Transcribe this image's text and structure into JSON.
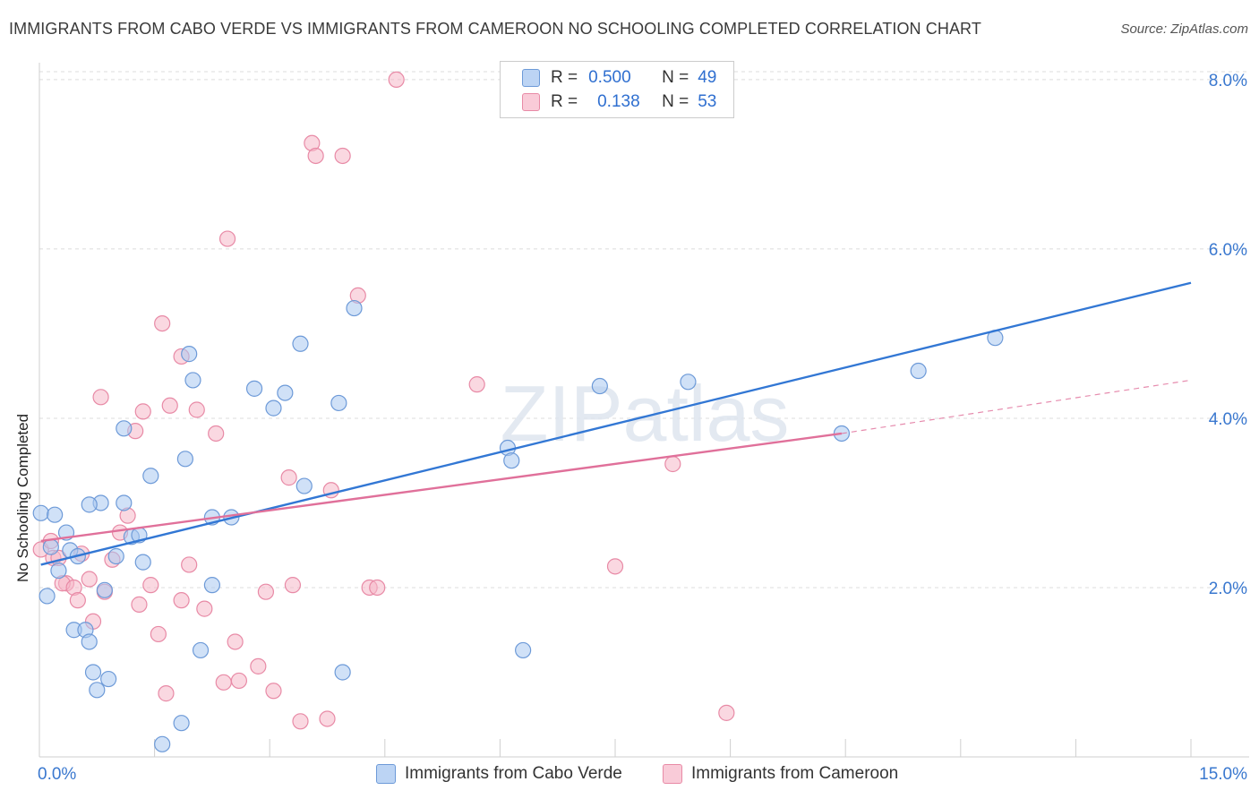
{
  "title": "IMMIGRANTS FROM CABO VERDE VS IMMIGRANTS FROM CAMEROON NO SCHOOLING COMPLETED CORRELATION CHART",
  "source": "Source: ZipAtlas.com",
  "watermark": "ZIPatlas",
  "colors": {
    "blue_fill": "#a9c8f0",
    "blue_stroke": "#6d9ad8",
    "blue_line": "#3277d4",
    "pink_fill": "#f5b8c9",
    "pink_stroke": "#e88aa6",
    "pink_line": "#e0709a",
    "grid": "#dcdcdc",
    "tick_label": "#3a78cf"
  },
  "legend": {
    "rows": [
      {
        "r_label": "R =",
        "r_value": "0.500",
        "n_label": "N =",
        "n_value": "49"
      },
      {
        "r_label": "R =",
        "r_value": "0.138",
        "n_label": "N =",
        "n_value": "53"
      }
    ]
  },
  "bottom_legend": [
    "Immigrants from Cabo Verde",
    "Immigrants from Cameroon"
  ],
  "chart_data": {
    "type": "scatter",
    "title": "IMMIGRANTS FROM CABO VERDE VS IMMIGRANTS FROM CAMEROON NO SCHOOLING COMPLETED CORRELATION CHART",
    "xlabel": "",
    "ylabel": "No Schooling Completed",
    "xlim": [
      0,
      15
    ],
    "ylim": [
      0,
      8.2
    ],
    "x_tick_labels": [
      "0.0%",
      "15.0%"
    ],
    "y_ticks": [
      2,
      4,
      6,
      8
    ],
    "y_tick_labels": [
      "2.0%",
      "4.0%",
      "6.0%",
      "8.0%"
    ],
    "grid": true,
    "series": [
      {
        "name": "Immigrants from Cabo Verde",
        "color": "blue",
        "r": 0.5,
        "n": 49,
        "trend": {
          "x": [
            0.02,
            15.0
          ],
          "y": [
            2.27,
            5.6
          ],
          "dashed_extension": false
        },
        "points": [
          [
            0.02,
            2.88
          ],
          [
            0.2,
            2.86
          ],
          [
            0.15,
            2.48
          ],
          [
            0.35,
            2.65
          ],
          [
            0.4,
            2.44
          ],
          [
            0.5,
            2.37
          ],
          [
            0.25,
            2.2
          ],
          [
            0.1,
            1.9
          ],
          [
            0.45,
            1.5
          ],
          [
            0.6,
            1.5
          ],
          [
            0.65,
            1.36
          ],
          [
            0.7,
            1.0
          ],
          [
            0.75,
            0.79
          ],
          [
            0.9,
            0.92
          ],
          [
            0.85,
            1.97
          ],
          [
            1.0,
            2.37
          ],
          [
            1.2,
            2.6
          ],
          [
            1.3,
            2.62
          ],
          [
            1.35,
            2.3
          ],
          [
            1.1,
            3.0
          ],
          [
            0.8,
            3.0
          ],
          [
            0.65,
            2.98
          ],
          [
            1.1,
            3.88
          ],
          [
            1.45,
            3.32
          ],
          [
            1.9,
            3.52
          ],
          [
            1.95,
            4.76
          ],
          [
            2.0,
            4.45
          ],
          [
            2.25,
            2.83
          ],
          [
            2.5,
            2.83
          ],
          [
            2.25,
            2.03
          ],
          [
            2.1,
            1.26
          ],
          [
            1.85,
            0.4
          ],
          [
            1.6,
            0.15
          ],
          [
            2.8,
            4.35
          ],
          [
            3.05,
            4.12
          ],
          [
            3.2,
            4.3
          ],
          [
            3.4,
            4.88
          ],
          [
            3.45,
            3.2
          ],
          [
            3.9,
            4.18
          ],
          [
            4.1,
            5.3
          ],
          [
            3.95,
            1.0
          ],
          [
            6.1,
            3.65
          ],
          [
            6.15,
            3.5
          ],
          [
            6.3,
            1.26
          ],
          [
            7.3,
            4.38
          ],
          [
            8.45,
            4.43
          ],
          [
            10.45,
            3.82
          ],
          [
            11.45,
            4.56
          ],
          [
            12.45,
            4.95
          ]
        ]
      },
      {
        "name": "Immigrants from Cameroon",
        "color": "pink",
        "r": 0.138,
        "n": 53,
        "trend": {
          "x": [
            0.02,
            10.45
          ],
          "y": [
            2.55,
            3.82
          ],
          "dashed_extension": true,
          "extension_to": [
            15.0,
            4.45
          ]
        },
        "points": [
          [
            0.02,
            2.45
          ],
          [
            0.18,
            2.35
          ],
          [
            0.25,
            2.35
          ],
          [
            0.35,
            2.05
          ],
          [
            0.3,
            2.05
          ],
          [
            0.45,
            2.0
          ],
          [
            0.5,
            1.85
          ],
          [
            0.55,
            2.4
          ],
          [
            0.65,
            2.1
          ],
          [
            0.7,
            1.6
          ],
          [
            0.85,
            1.95
          ],
          [
            0.95,
            2.33
          ],
          [
            1.05,
            2.65
          ],
          [
            1.15,
            2.85
          ],
          [
            1.25,
            3.85
          ],
          [
            1.3,
            1.8
          ],
          [
            1.35,
            4.08
          ],
          [
            1.45,
            2.03
          ],
          [
            1.55,
            1.45
          ],
          [
            1.65,
            0.75
          ],
          [
            1.6,
            5.12
          ],
          [
            1.7,
            4.15
          ],
          [
            1.85,
            4.73
          ],
          [
            1.85,
            1.85
          ],
          [
            1.95,
            2.27
          ],
          [
            2.05,
            4.1
          ],
          [
            2.15,
            1.75
          ],
          [
            2.3,
            3.82
          ],
          [
            2.45,
            6.12
          ],
          [
            2.4,
            0.88
          ],
          [
            2.55,
            1.36
          ],
          [
            2.6,
            0.9
          ],
          [
            2.85,
            1.07
          ],
          [
            2.95,
            1.95
          ],
          [
            3.05,
            0.78
          ],
          [
            3.25,
            3.3
          ],
          [
            3.3,
            2.03
          ],
          [
            3.4,
            0.42
          ],
          [
            3.55,
            7.25
          ],
          [
            3.6,
            7.1
          ],
          [
            3.75,
            0.45
          ],
          [
            3.8,
            3.15
          ],
          [
            3.95,
            7.1
          ],
          [
            4.15,
            5.45
          ],
          [
            4.3,
            2.0
          ],
          [
            4.4,
            2.0
          ],
          [
            4.65,
            8.0
          ],
          [
            5.7,
            4.4
          ],
          [
            7.5,
            2.25
          ],
          [
            8.25,
            3.46
          ],
          [
            8.95,
            0.52
          ],
          [
            0.8,
            4.25
          ],
          [
            0.15,
            2.55
          ]
        ]
      }
    ]
  }
}
